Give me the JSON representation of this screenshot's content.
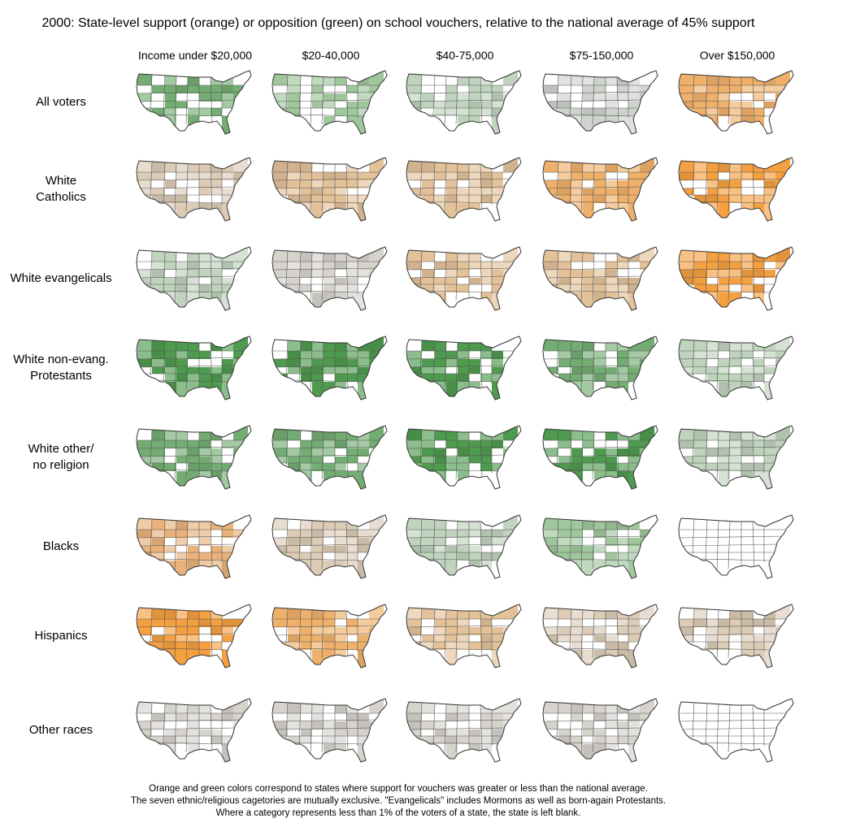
{
  "title": "2000:  State-level support (orange) or opposition (green) on school vouchers, relative to the national average of 45% support",
  "columns": [
    "Income under $20,000",
    "$20-40,000",
    "$40-75,000",
    "$75-150,000",
    "Over $150,000"
  ],
  "rows": [
    {
      "label_lines": [
        "All voters"
      ],
      "shades": [
        "green-medium",
        "green-light",
        "green-pale",
        "neutral-gray",
        "orange-light"
      ]
    },
    {
      "label_lines": [
        "White",
        "Catholics"
      ],
      "shades": [
        "tan-light",
        "tan",
        "tan",
        "orange-light",
        "orange"
      ]
    },
    {
      "label_lines": [
        "White evangelicals"
      ],
      "shades": [
        "green-pale",
        "gray-light",
        "tan",
        "tan",
        "orange"
      ]
    },
    {
      "label_lines": [
        "White non-evang.",
        "Protestants"
      ],
      "shades": [
        "green-dark",
        "green-dark",
        "green-dark",
        "green-medium",
        "green-pale"
      ]
    },
    {
      "label_lines": [
        "White other/",
        "no religion"
      ],
      "shades": [
        "green-medium",
        "green-medium",
        "green-dark",
        "green-dark",
        "green-pale"
      ]
    },
    {
      "label_lines": [
        "Blacks"
      ],
      "shades": [
        "tan-orange",
        "tan-light",
        "green-pale",
        "green-light",
        "blank"
      ]
    },
    {
      "label_lines": [
        "Hispanics"
      ],
      "shades": [
        "orange",
        "orange-light",
        "tan",
        "tan-light",
        "tan-light"
      ]
    },
    {
      "label_lines": [
        "Other races"
      ],
      "shades": [
        "gray-light",
        "gray-light",
        "gray-light",
        "gray-light",
        "blank"
      ]
    }
  ],
  "palette": {
    "green-dark": "#4e9a4e",
    "green-medium": "#73ad73",
    "green-light": "#a0c69c",
    "green-pale": "#bfd3bd",
    "neutral-gray": "#cfd3cd",
    "gray-light": "#d6d3cd",
    "tan-light": "#dccbb6",
    "tan": "#e3c29a",
    "tan-orange": "#e8b27a",
    "orange-light": "#eeb06a",
    "orange": "#f5a040",
    "blank": "#ffffff"
  },
  "footer_lines": [
    "Orange and green colors correspond to states where support for vouchers was greater or less than the national average.",
    "The seven ethnic/religious cagetories are mutually exclusive.  \"Evangelicals\" includes Mormons as well as born-again Protestants.",
    "Where a category represents less than 1% of the voters of a state, the state is left blank."
  ]
}
